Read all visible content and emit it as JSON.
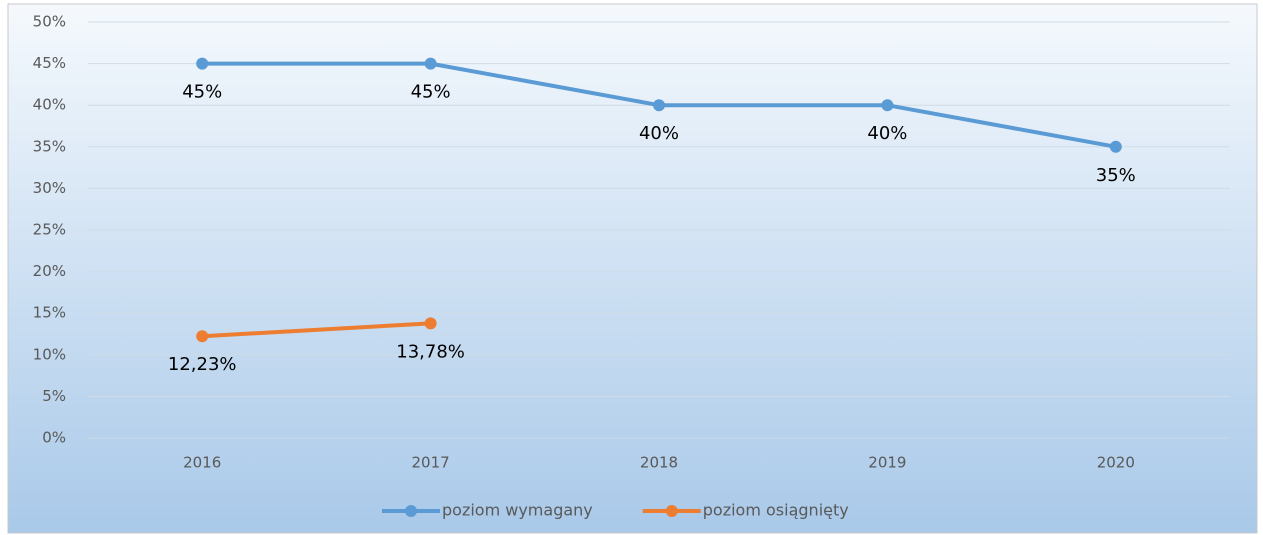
{
  "chart_data": {
    "type": "line",
    "categories": [
      "2016",
      "2017",
      "2018",
      "2019",
      "2020"
    ],
    "series": [
      {
        "name": "poziom wymagany",
        "color": "#5b9bd5",
        "values": [
          45,
          45,
          40,
          40,
          35
        ],
        "value_labels": [
          "45%",
          "45%",
          "40%",
          "40%",
          "35%"
        ]
      },
      {
        "name": "poziom osiągnięty",
        "color": "#ed7d31",
        "values": [
          12.23,
          13.78,
          null,
          null,
          null
        ],
        "value_labels": [
          "12,23%",
          "13,78%",
          null,
          null,
          null
        ]
      }
    ],
    "ylim": [
      0,
      50
    ],
    "yticks": [
      {
        "value": 0,
        "label": "0%"
      },
      {
        "value": 5,
        "label": "5%"
      },
      {
        "value": 10,
        "label": "10%"
      },
      {
        "value": 15,
        "label": "15%"
      },
      {
        "value": 20,
        "label": "20%"
      },
      {
        "value": 25,
        "label": "25%"
      },
      {
        "value": 30,
        "label": "30%"
      },
      {
        "value": 35,
        "label": "35%"
      },
      {
        "value": 40,
        "label": "40%"
      },
      {
        "value": 45,
        "label": "45%"
      },
      {
        "value": 50,
        "label": "50%"
      }
    ],
    "grid": true,
    "legend": "bottom"
  }
}
